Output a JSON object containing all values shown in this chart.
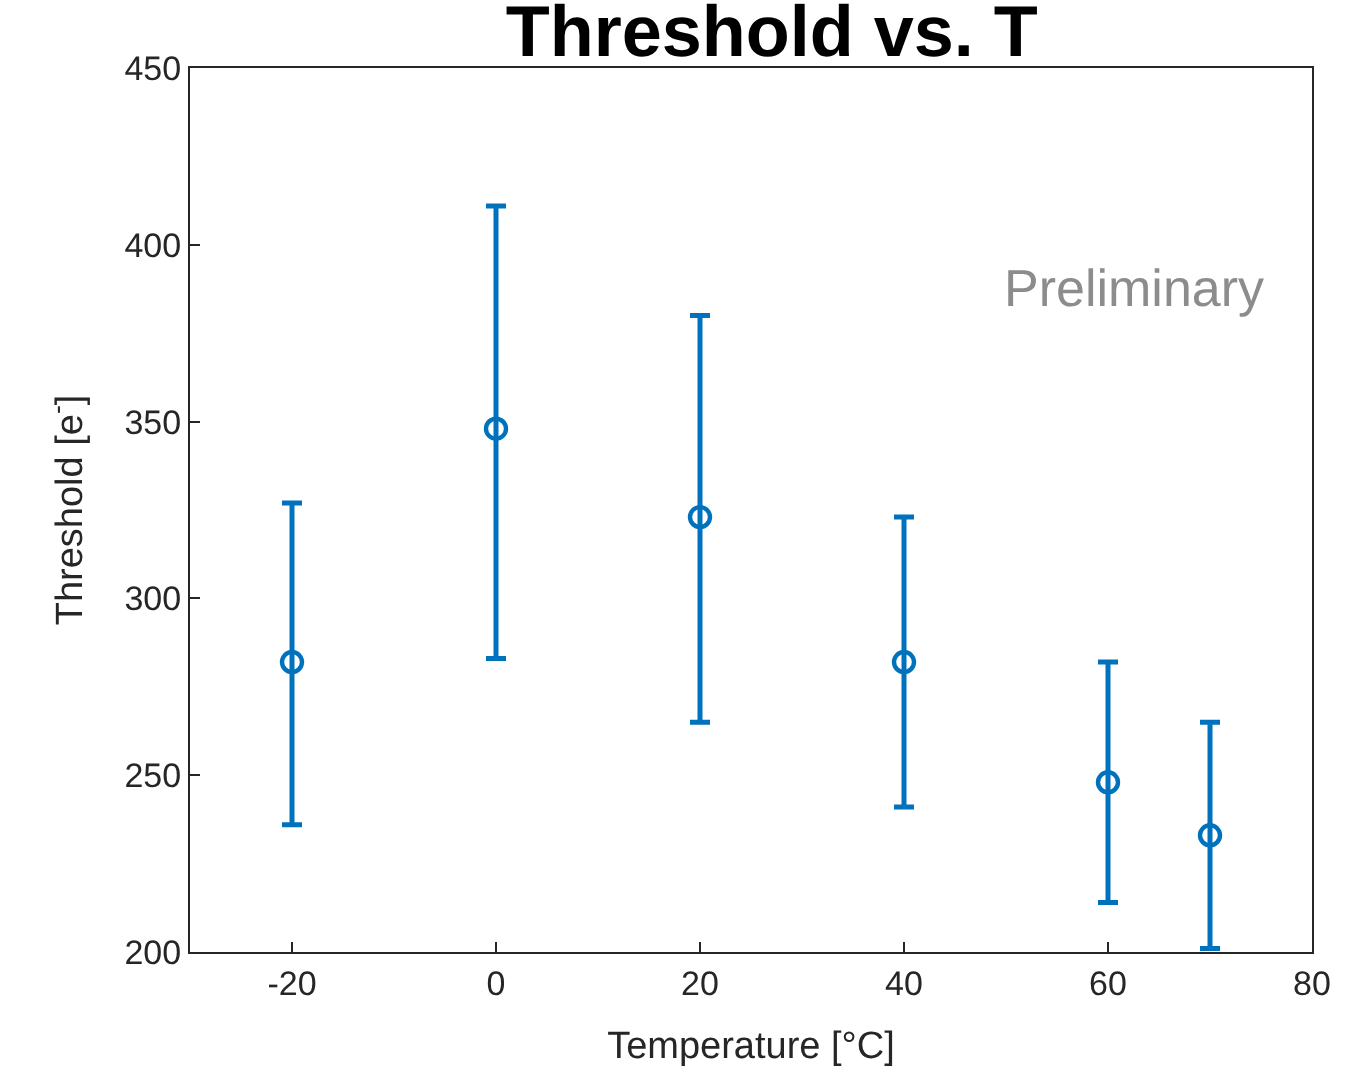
{
  "chart_data": {
    "type": "scatter",
    "title": "Threshold vs. T",
    "xlabel": "Temperature [°C]",
    "ylabel": "Threshold [e$^{-}$]",
    "x": [
      -20,
      0,
      20,
      40,
      60,
      70
    ],
    "series": [
      {
        "color": "#0072bd",
        "values": [
          282,
          348,
          323,
          282,
          248,
          233
        ],
        "errors": [
          [
            236,
            327
          ],
          [
            283,
            411
          ],
          [
            265,
            380
          ],
          [
            241,
            323
          ],
          [
            214,
            282
          ],
          [
            201,
            265
          ]
        ]
      }
    ],
    "xlim": [
      -30,
      80
    ],
    "xticks": [
      -20,
      0,
      20,
      40,
      60,
      80
    ],
    "ylim": [
      200,
      450
    ],
    "yticks": [
      200,
      250,
      300,
      350,
      400,
      450
    ],
    "marker": "circle",
    "annotations": [
      "Preliminary"
    ]
  }
}
